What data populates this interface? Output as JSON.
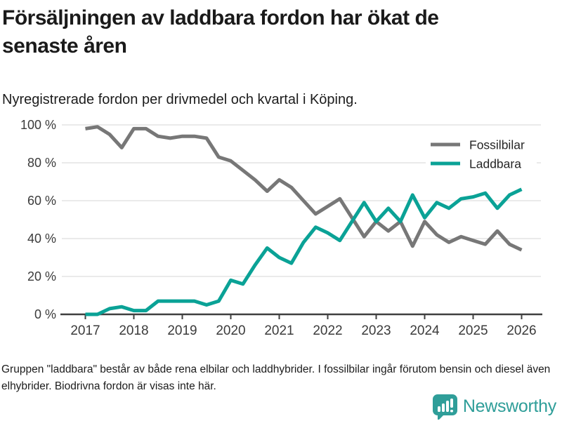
{
  "header": {
    "title": "Försäljningen av laddbara fordon har ökat de senaste åren",
    "subtitle": "Nyregistrerade fordon per drivmedel och kvartal i Köping."
  },
  "footer": {
    "footnote": "Gruppen \"laddbara\" består av både rena elbilar och laddhybrider. I fossilbilar ingår förutom bensin och diesel även elhybrider. Biodrivna fordon är visas inte här.",
    "logo": {
      "name": "Newsworthy",
      "icon": "bar-chart-speech-bubble-icon",
      "color": "#2f9e99"
    }
  },
  "colors": {
    "fossil_line": "#777777",
    "laddbara_line": "#0aa296",
    "axis": "#3f3f3f",
    "grid": "#e3e3e3",
    "tick_text": "#3b3b3b",
    "legend_text": "#262626"
  },
  "chart_data": {
    "type": "line",
    "title": "Nyregistrerade fordon per drivmedel och kvartal i Köping",
    "x_unit": "quarter",
    "x_start": "2017-Q1",
    "x_end": "2026-Q1",
    "x": [
      2017.0,
      2017.25,
      2017.5,
      2017.75,
      2018.0,
      2018.25,
      2018.5,
      2018.75,
      2019.0,
      2019.25,
      2019.5,
      2019.75,
      2020.0,
      2020.25,
      2020.5,
      2020.75,
      2021.0,
      2021.25,
      2021.5,
      2021.75,
      2022.0,
      2022.25,
      2022.5,
      2022.75,
      2023.0,
      2023.25,
      2023.5,
      2023.75,
      2024.0,
      2024.25,
      2024.5,
      2024.75,
      2025.0,
      2025.25,
      2025.5,
      2025.75,
      2026.0
    ],
    "series": [
      {
        "name": "Fossilbilar",
        "color": "#777777",
        "values": [
          98,
          99,
          95,
          88,
          98,
          98,
          94,
          93,
          94,
          94,
          93,
          83,
          81,
          76,
          71,
          65,
          71,
          67,
          60,
          53,
          57,
          61,
          51,
          41,
          49,
          44,
          49,
          36,
          49,
          42,
          38,
          41,
          39,
          37,
          44,
          37,
          34
        ]
      },
      {
        "name": "Laddbara",
        "color": "#0aa296",
        "values": [
          0,
          0,
          3,
          4,
          2,
          2,
          7,
          7,
          7,
          7,
          5,
          7,
          18,
          16,
          26,
          35,
          30,
          27,
          38,
          46,
          43,
          39,
          49,
          59,
          49,
          56,
          49,
          63,
          51,
          59,
          56,
          61,
          62,
          64,
          56,
          63,
          66
        ]
      }
    ],
    "xlabel": "",
    "ylabel": "",
    "ylim": [
      0,
      100
    ],
    "y_tick_values": [
      0,
      20,
      40,
      60,
      80,
      100
    ],
    "y_tick_labels": [
      "0 %",
      "20 %",
      "40 %",
      "60 %",
      "80 %",
      "100 %"
    ],
    "x_tick_values": [
      2017,
      2018,
      2019,
      2020,
      2021,
      2022,
      2023,
      2024,
      2025,
      2026
    ],
    "x_tick_labels": [
      "2017",
      "2018",
      "2019",
      "2020",
      "2021",
      "2022",
      "2023",
      "2024",
      "2025",
      "2026"
    ],
    "grid": "horizontal",
    "legend_position": "top-right"
  }
}
